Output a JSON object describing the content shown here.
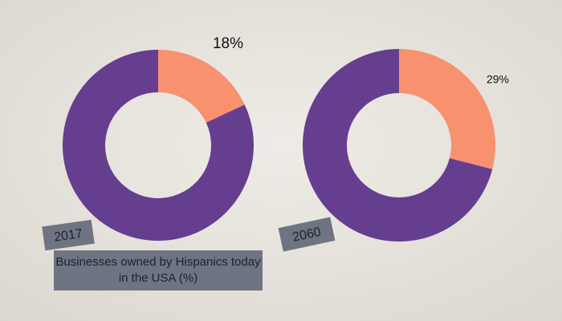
{
  "caption": "Businesses owned by Hispanics today in the USA (%)",
  "chart_data": [
    {
      "type": "donut",
      "label": "2017",
      "values": [
        18,
        82
      ],
      "value_labels": [
        "18%",
        null
      ],
      "colors": [
        "#f8916f",
        "#663e8f"
      ]
    },
    {
      "type": "donut",
      "label": "2060",
      "values": [
        29,
        71
      ],
      "value_labels": [
        "29%",
        null
      ],
      "colors": [
        "#f8916f",
        "#663e8f"
      ]
    }
  ]
}
